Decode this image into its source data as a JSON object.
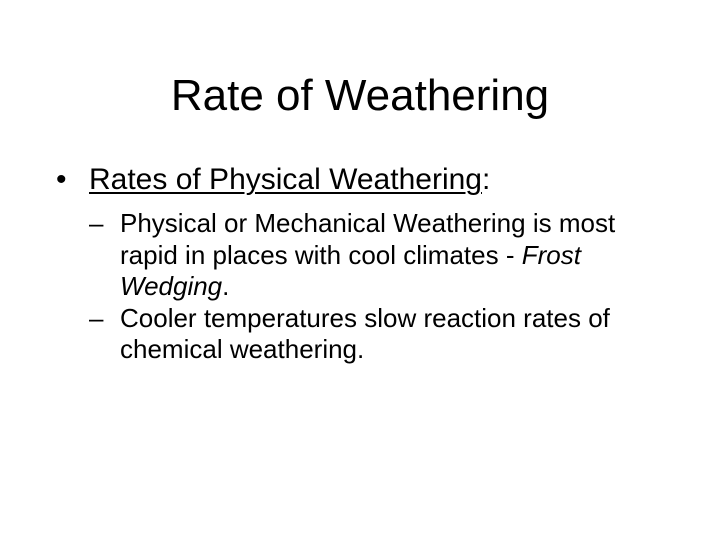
{
  "slide": {
    "title": "Rate of Weathering",
    "bullet": {
      "marker": "•",
      "label": "Rates of Physical Weathering",
      "suffix": ":"
    },
    "sub_bullets": [
      {
        "marker": "–",
        "text": "Physical or Mechanical Weathering is most rapid in places with cool climates - ",
        "emphasis": "Frost Wedging",
        "end": "."
      },
      {
        "marker": "–",
        "text": "Cooler temperatures slow reaction rates of chemical weathering."
      }
    ]
  }
}
